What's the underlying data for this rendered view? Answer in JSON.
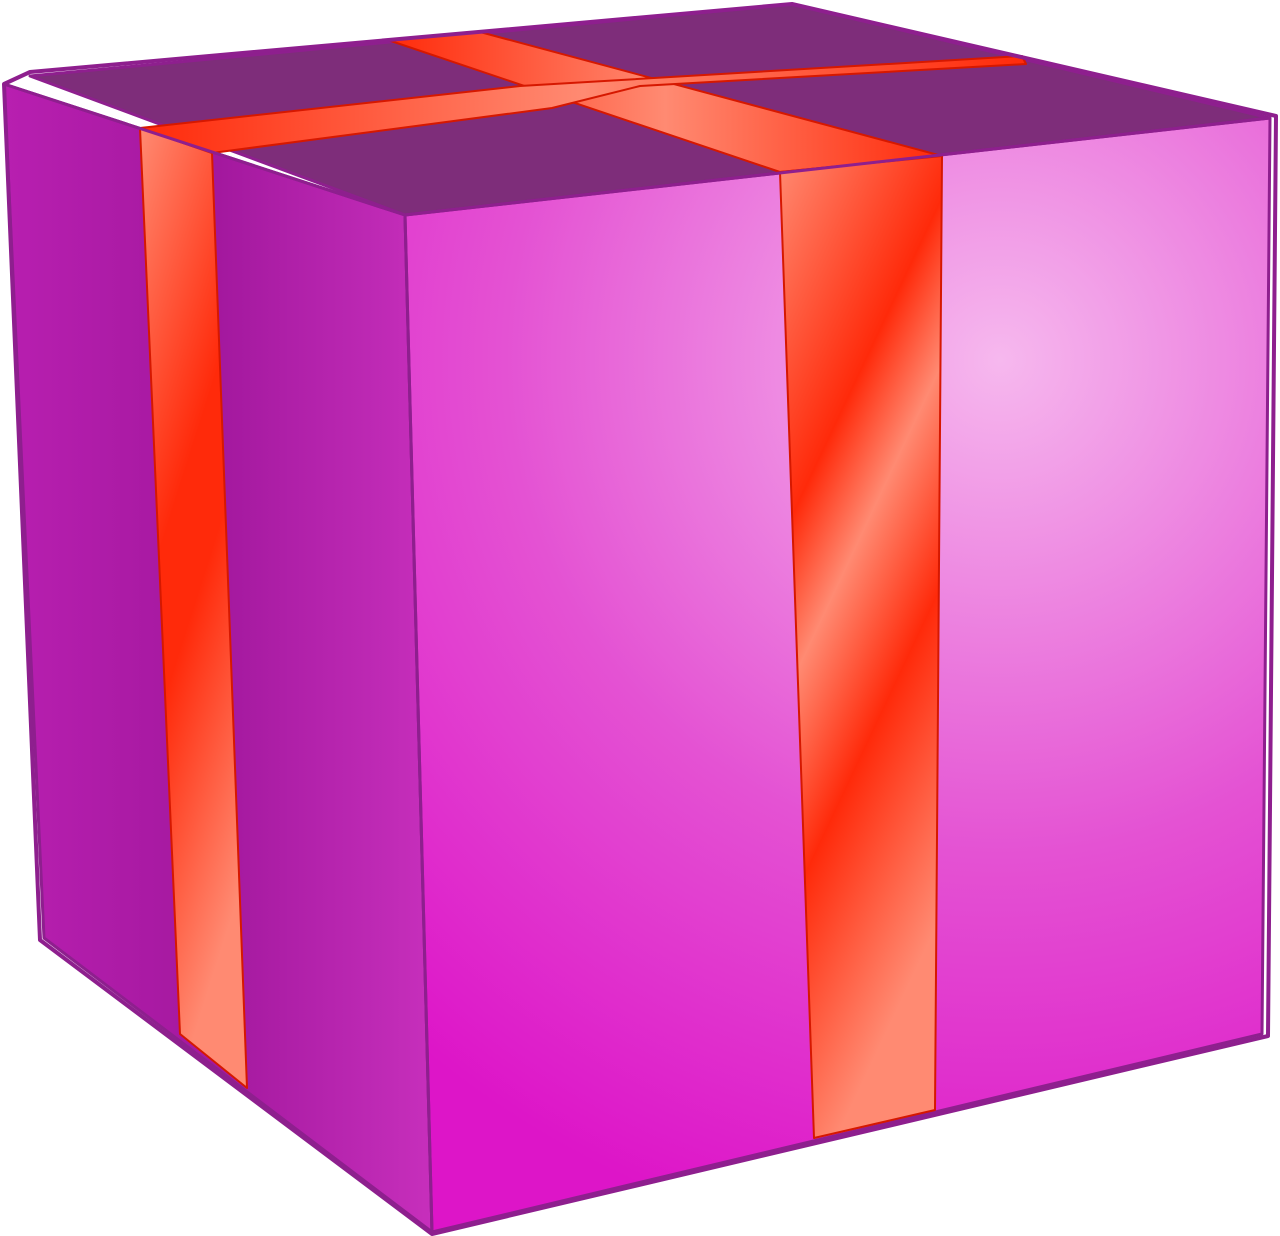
{
  "scene": {
    "subject_icon": "gift-box-icon",
    "background_color": "#ffffff"
  },
  "palette": {
    "box_outline": "#8e1f8e",
    "box_top": "#7e2d7a",
    "box_left_face": "#b81fb0",
    "box_left_face_shadow": "#a3189e",
    "box_front_face": "#dd15c8",
    "box_front_highlight": "#f6b8ee",
    "ribbon": "#ff2a0a",
    "ribbon_highlight": "#ff8a72",
    "ribbon_outline": "#d61800"
  }
}
